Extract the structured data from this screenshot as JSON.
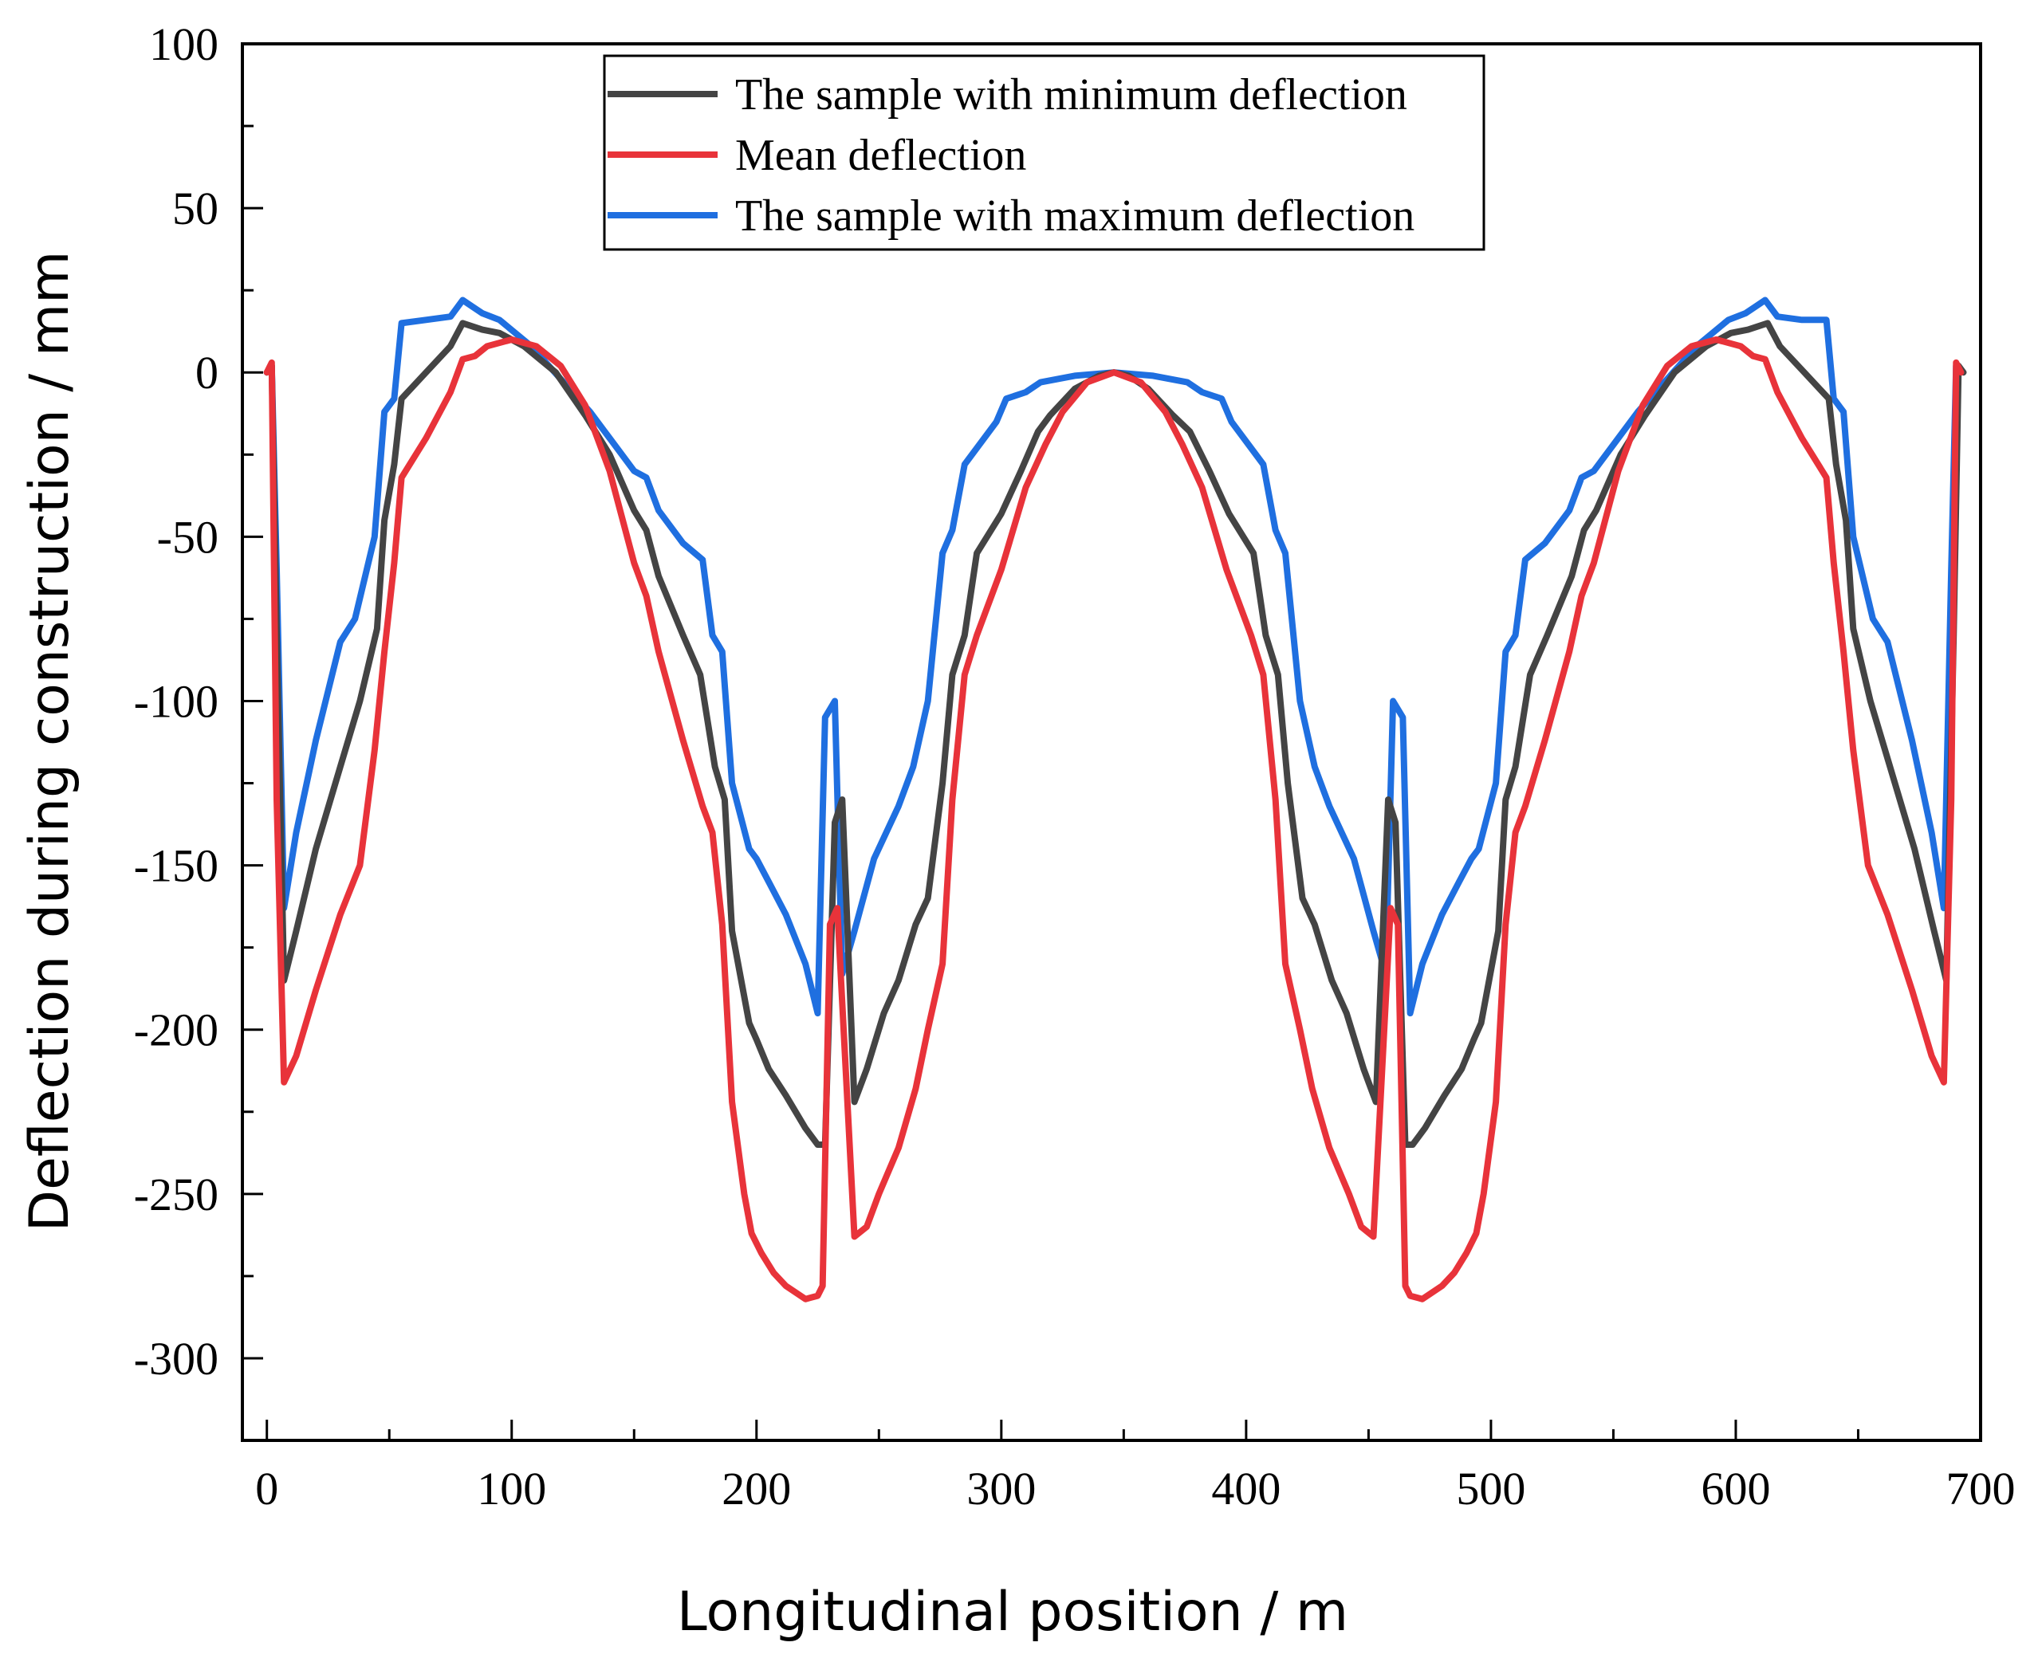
{
  "chart_data": {
    "type": "line",
    "title": "",
    "xlabel": "Longitudinal position / m",
    "ylabel": "Deflection during construction / mm",
    "xlim": [
      -10,
      700
    ],
    "ylim": [
      -325,
      100
    ],
    "xticks": [
      0,
      100,
      200,
      300,
      400,
      500,
      600,
      700
    ],
    "yticks": [
      100,
      50,
      0,
      -50,
      -100,
      -150,
      -200,
      -250,
      -300
    ],
    "legend_position": "top-center",
    "series": [
      {
        "name": "The sample with minimum deflection",
        "color": "#444444",
        "points": [
          [
            0,
            0
          ],
          [
            2,
            2
          ],
          [
            4,
            -80
          ],
          [
            7,
            -185
          ],
          [
            12,
            -170
          ],
          [
            20,
            -145
          ],
          [
            30,
            -120
          ],
          [
            38,
            -100
          ],
          [
            45,
            -78
          ],
          [
            48,
            -45
          ],
          [
            52,
            -28
          ],
          [
            55,
            -8
          ],
          [
            65,
            0
          ],
          [
            75,
            8
          ],
          [
            80,
            15
          ],
          [
            88,
            13
          ],
          [
            95,
            12
          ],
          [
            105,
            8
          ],
          [
            118,
            0
          ],
          [
            130,
            -13
          ],
          [
            140,
            -25
          ],
          [
            150,
            -42
          ],
          [
            155,
            -48
          ],
          [
            160,
            -62
          ],
          [
            170,
            -80
          ],
          [
            177,
            -92
          ],
          [
            183,
            -120
          ],
          [
            187,
            -130
          ],
          [
            190,
            -170
          ],
          [
            197,
            -198
          ],
          [
            200,
            -203
          ],
          [
            205,
            -212
          ],
          [
            212,
            -220
          ],
          [
            220,
            -230
          ],
          [
            225,
            -235
          ],
          [
            228,
            -235
          ],
          [
            232,
            -137
          ],
          [
            235,
            -130
          ],
          [
            240,
            -222
          ],
          [
            245,
            -212
          ],
          [
            252,
            -195
          ],
          [
            258,
            -185
          ],
          [
            265,
            -168
          ],
          [
            270,
            -160
          ],
          [
            276,
            -125
          ],
          [
            280,
            -92
          ],
          [
            285,
            -80
          ],
          [
            290,
            -55
          ],
          [
            300,
            -43
          ],
          [
            308,
            -30
          ],
          [
            315,
            -18
          ],
          [
            320,
            -13
          ],
          [
            330,
            -5
          ],
          [
            340,
            -1
          ],
          [
            346,
            0
          ],
          [
            352,
            -1
          ],
          [
            360,
            -5
          ],
          [
            370,
            -13
          ],
          [
            377,
            -18
          ],
          [
            385,
            -30
          ],
          [
            393,
            -43
          ],
          [
            403,
            -55
          ],
          [
            408,
            -80
          ],
          [
            413,
            -92
          ],
          [
            417,
            -125
          ],
          [
            423,
            -160
          ],
          [
            428,
            -168
          ],
          [
            435,
            -185
          ],
          [
            441,
            -195
          ],
          [
            448,
            -212
          ],
          [
            453,
            -222
          ],
          [
            458,
            -130
          ],
          [
            461,
            -137
          ],
          [
            465,
            -235
          ],
          [
            468,
            -235
          ],
          [
            473,
            -230
          ],
          [
            481,
            -220
          ],
          [
            488,
            -212
          ],
          [
            493,
            -203
          ],
          [
            496,
            -198
          ],
          [
            503,
            -170
          ],
          [
            506,
            -130
          ],
          [
            510,
            -120
          ],
          [
            516,
            -92
          ],
          [
            523,
            -80
          ],
          [
            533,
            -62
          ],
          [
            538,
            -48
          ],
          [
            543,
            -42
          ],
          [
            553,
            -25
          ],
          [
            563,
            -13
          ],
          [
            575,
            0
          ],
          [
            588,
            8
          ],
          [
            598,
            12
          ],
          [
            605,
            13
          ],
          [
            613,
            15
          ],
          [
            618,
            8
          ],
          [
            628,
            0
          ],
          [
            638,
            -8
          ],
          [
            641,
            -28
          ],
          [
            645,
            -45
          ],
          [
            648,
            -78
          ],
          [
            655,
            -100
          ],
          [
            663,
            -120
          ],
          [
            673,
            -145
          ],
          [
            681,
            -170
          ],
          [
            686,
            -185
          ],
          [
            689,
            -80
          ],
          [
            691,
            2
          ],
          [
            693,
            0
          ]
        ]
      },
      {
        "name": "Mean deflection",
        "color": "#e8333a",
        "points": [
          [
            0,
            0
          ],
          [
            2,
            3
          ],
          [
            4,
            -130
          ],
          [
            7,
            -216
          ],
          [
            12,
            -208
          ],
          [
            20,
            -188
          ],
          [
            30,
            -165
          ],
          [
            38,
            -150
          ],
          [
            44,
            -115
          ],
          [
            48,
            -85
          ],
          [
            52,
            -58
          ],
          [
            55,
            -32
          ],
          [
            65,
            -20
          ],
          [
            75,
            -6
          ],
          [
            80,
            4
          ],
          [
            85,
            5
          ],
          [
            90,
            8
          ],
          [
            100,
            10
          ],
          [
            110,
            8
          ],
          [
            120,
            2
          ],
          [
            130,
            -10
          ],
          [
            140,
            -30
          ],
          [
            150,
            -58
          ],
          [
            155,
            -68
          ],
          [
            160,
            -85
          ],
          [
            170,
            -112
          ],
          [
            178,
            -132
          ],
          [
            182,
            -140
          ],
          [
            186,
            -168
          ],
          [
            190,
            -222
          ],
          [
            195,
            -250
          ],
          [
            198,
            -262
          ],
          [
            202,
            -268
          ],
          [
            207,
            -274
          ],
          [
            212,
            -278
          ],
          [
            220,
            -282
          ],
          [
            225,
            -281
          ],
          [
            227,
            -278
          ],
          [
            230,
            -168
          ],
          [
            233,
            -163
          ],
          [
            240,
            -263
          ],
          [
            245,
            -260
          ],
          [
            250,
            -250
          ],
          [
            258,
            -236
          ],
          [
            265,
            -218
          ],
          [
            270,
            -200
          ],
          [
            276,
            -180
          ],
          [
            280,
            -130
          ],
          [
            285,
            -92
          ],
          [
            290,
            -80
          ],
          [
            300,
            -60
          ],
          [
            310,
            -35
          ],
          [
            318,
            -22
          ],
          [
            325,
            -12
          ],
          [
            335,
            -3
          ],
          [
            346,
            0
          ],
          [
            357,
            -3
          ],
          [
            367,
            -12
          ],
          [
            374,
            -22
          ],
          [
            382,
            -35
          ],
          [
            392,
            -60
          ],
          [
            402,
            -80
          ],
          [
            407,
            -92
          ],
          [
            412,
            -130
          ],
          [
            416,
            -180
          ],
          [
            422,
            -200
          ],
          [
            427,
            -218
          ],
          [
            434,
            -236
          ],
          [
            442,
            -250
          ],
          [
            447,
            -260
          ],
          [
            452,
            -263
          ],
          [
            459,
            -163
          ],
          [
            462,
            -168
          ],
          [
            465,
            -278
          ],
          [
            467,
            -281
          ],
          [
            472,
            -282
          ],
          [
            480,
            -278
          ],
          [
            485,
            -274
          ],
          [
            490,
            -268
          ],
          [
            494,
            -262
          ],
          [
            497,
            -250
          ],
          [
            502,
            -222
          ],
          [
            506,
            -168
          ],
          [
            510,
            -140
          ],
          [
            514,
            -132
          ],
          [
            522,
            -112
          ],
          [
            532,
            -85
          ],
          [
            537,
            -68
          ],
          [
            542,
            -58
          ],
          [
            552,
            -30
          ],
          [
            562,
            -10
          ],
          [
            572,
            2
          ],
          [
            582,
            8
          ],
          [
            592,
            10
          ],
          [
            602,
            8
          ],
          [
            607,
            5
          ],
          [
            612,
            4
          ],
          [
            617,
            -6
          ],
          [
            627,
            -20
          ],
          [
            637,
            -32
          ],
          [
            640,
            -58
          ],
          [
            644,
            -85
          ],
          [
            648,
            -115
          ],
          [
            654,
            -150
          ],
          [
            662,
            -165
          ],
          [
            672,
            -188
          ],
          [
            680,
            -208
          ],
          [
            685,
            -216
          ],
          [
            688,
            -130
          ],
          [
            690,
            3
          ],
          [
            692,
            0
          ]
        ]
      },
      {
        "name": "The sample with maximum deflection",
        "color": "#1f6fe0",
        "points": [
          [
            0,
            0
          ],
          [
            2,
            2
          ],
          [
            4,
            -60
          ],
          [
            7,
            -163
          ],
          [
            12,
            -140
          ],
          [
            20,
            -112
          ],
          [
            30,
            -82
          ],
          [
            36,
            -75
          ],
          [
            44,
            -50
          ],
          [
            48,
            -12
          ],
          [
            52,
            -8
          ],
          [
            55,
            15
          ],
          [
            65,
            16
          ],
          [
            75,
            17
          ],
          [
            80,
            22
          ],
          [
            88,
            18
          ],
          [
            95,
            16
          ],
          [
            108,
            8
          ],
          [
            120,
            -2
          ],
          [
            132,
            -12
          ],
          [
            140,
            -20
          ],
          [
            150,
            -30
          ],
          [
            155,
            -32
          ],
          [
            160,
            -42
          ],
          [
            170,
            -52
          ],
          [
            178,
            -57
          ],
          [
            182,
            -80
          ],
          [
            186,
            -85
          ],
          [
            190,
            -125
          ],
          [
            197,
            -145
          ],
          [
            200,
            -148
          ],
          [
            205,
            -155
          ],
          [
            212,
            -165
          ],
          [
            220,
            -180
          ],
          [
            225,
            -195
          ],
          [
            228,
            -105
          ],
          [
            232,
            -100
          ],
          [
            235,
            -183
          ],
          [
            240,
            -170
          ],
          [
            248,
            -148
          ],
          [
            258,
            -132
          ],
          [
            264,
            -120
          ],
          [
            270,
            -100
          ],
          [
            276,
            -55
          ],
          [
            280,
            -48
          ],
          [
            285,
            -28
          ],
          [
            298,
            -15
          ],
          [
            302,
            -8
          ],
          [
            310,
            -6
          ],
          [
            316,
            -3
          ],
          [
            330,
            -1
          ],
          [
            346,
            0
          ],
          [
            362,
            -1
          ],
          [
            376,
            -3
          ],
          [
            382,
            -6
          ],
          [
            390,
            -8
          ],
          [
            394,
            -15
          ],
          [
            407,
            -28
          ],
          [
            412,
            -48
          ],
          [
            416,
            -55
          ],
          [
            422,
            -100
          ],
          [
            428,
            -120
          ],
          [
            434,
            -132
          ],
          [
            444,
            -148
          ],
          [
            452,
            -170
          ],
          [
            457,
            -183
          ],
          [
            460,
            -100
          ],
          [
            464,
            -105
          ],
          [
            467,
            -195
          ],
          [
            472,
            -180
          ],
          [
            480,
            -165
          ],
          [
            487,
            -155
          ],
          [
            492,
            -148
          ],
          [
            495,
            -145
          ],
          [
            502,
            -125
          ],
          [
            506,
            -85
          ],
          [
            510,
            -80
          ],
          [
            514,
            -57
          ],
          [
            522,
            -52
          ],
          [
            532,
            -42
          ],
          [
            537,
            -32
          ],
          [
            542,
            -30
          ],
          [
            552,
            -20
          ],
          [
            560,
            -12
          ],
          [
            572,
            -2
          ],
          [
            584,
            8
          ],
          [
            597,
            16
          ],
          [
            604,
            18
          ],
          [
            612,
            22
          ],
          [
            617,
            17
          ],
          [
            627,
            16
          ],
          [
            637,
            16
          ],
          [
            640,
            -8
          ],
          [
            644,
            -12
          ],
          [
            648,
            -50
          ],
          [
            656,
            -75
          ],
          [
            662,
            -82
          ],
          [
            672,
            -112
          ],
          [
            680,
            -140
          ],
          [
            685,
            -163
          ],
          [
            688,
            -60
          ],
          [
            690,
            2
          ],
          [
            692,
            0
          ]
        ]
      }
    ]
  }
}
